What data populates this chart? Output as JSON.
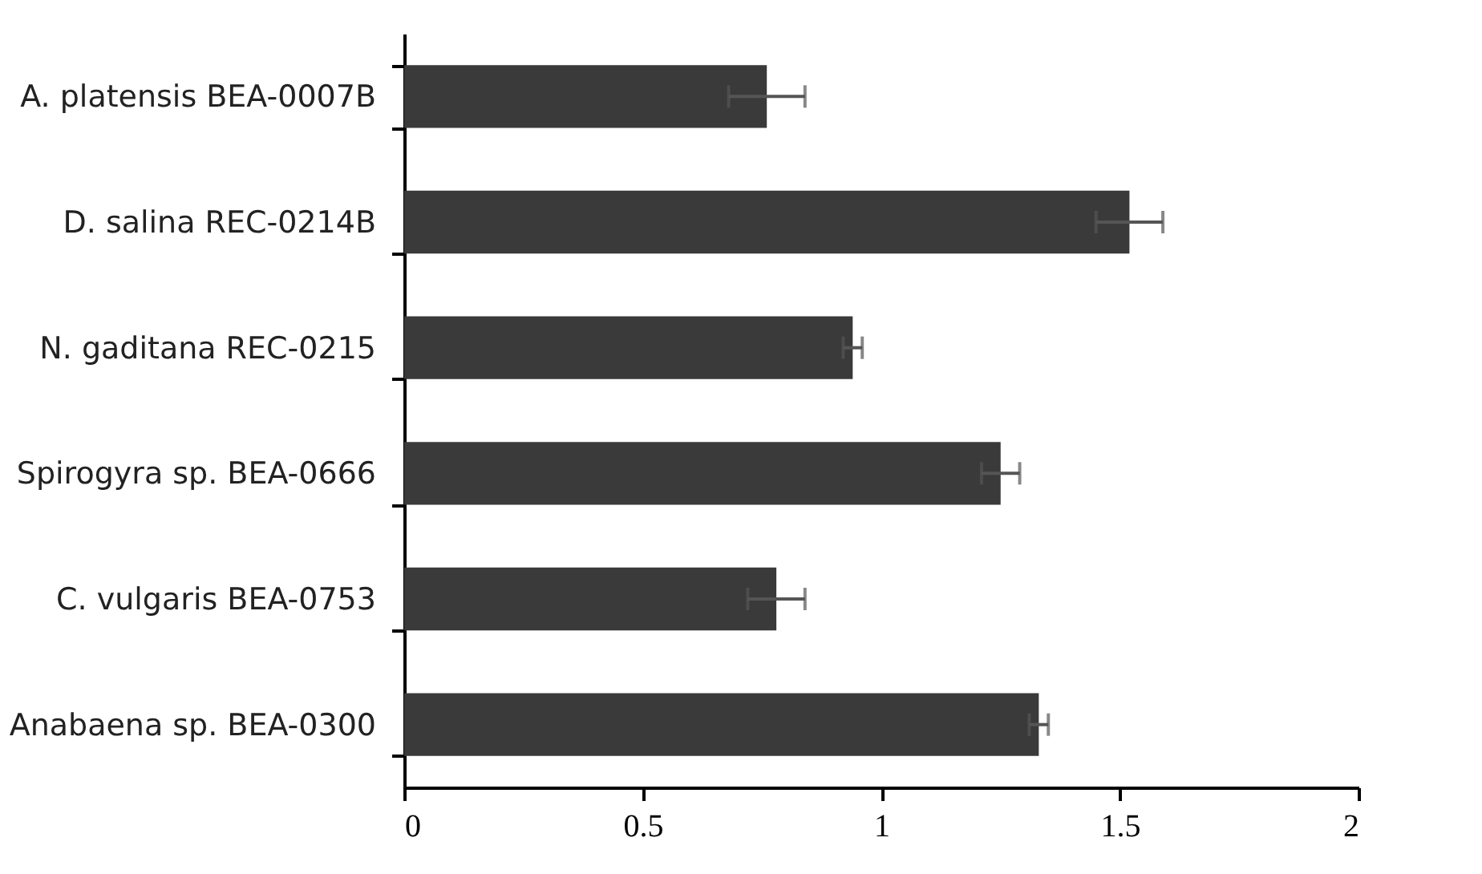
{
  "chart_data": {
    "type": "bar",
    "orientation": "horizontal",
    "categories": [
      "A. platensis BEA-0007B",
      "D. salina REC-0214B",
      "N. gaditana REC-0215",
      "Spirogyra sp. BEA-0666",
      "C. vulgaris BEA-0753",
      "Anabaena sp. BEA-0300"
    ],
    "values": [
      0.76,
      1.52,
      0.94,
      1.25,
      0.78,
      1.33
    ],
    "errors": [
      0.08,
      0.07,
      0.02,
      0.04,
      0.06,
      0.02
    ],
    "color": "#3a3a3a",
    "xlim": [
      0,
      2
    ],
    "xticks": [
      0,
      0.5,
      1,
      1.5,
      2
    ],
    "grid": false
  }
}
